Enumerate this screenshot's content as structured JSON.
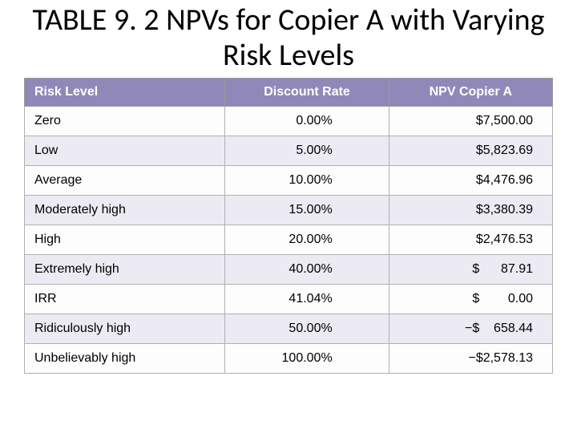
{
  "title": "TABLE 9. 2  NPVs for Copier A with Varying Risk Levels",
  "table": {
    "type": "table",
    "header_bg": "#9088b8",
    "header_fg": "#ffffff",
    "row_bg_odd": "#fdfdfe",
    "row_bg_even": "#eceaf3",
    "border_color": "#9a9a9a",
    "columns": [
      "Risk Level",
      "Discount Rate",
      "NPV Copier A"
    ],
    "col_widths_pct": [
      38,
      31,
      31
    ],
    "col_align": [
      "left",
      "right",
      "right"
    ],
    "header_align": [
      "left",
      "center",
      "center"
    ],
    "font_family": "Arial",
    "cell_fontsize": 16,
    "header_fontsize": 16,
    "rows": [
      {
        "risk": "Zero",
        "rate": "0.00%",
        "npv": "$7,500.00"
      },
      {
        "risk": "Low",
        "rate": "5.00%",
        "npv": "$5,823.69"
      },
      {
        "risk": "Average",
        "rate": "10.00%",
        "npv": "$4,476.96"
      },
      {
        "risk": "Moderately high",
        "rate": "15.00%",
        "npv": "$3,380.39"
      },
      {
        "risk": "High",
        "rate": "20.00%",
        "npv": "$2,476.53"
      },
      {
        "risk": "Extremely high",
        "rate": "40.00%",
        "npv": "$      87.91"
      },
      {
        "risk": "IRR",
        "rate": "41.04%",
        "npv": "$        0.00"
      },
      {
        "risk": "Ridiculously high",
        "rate": "50.00%",
        "npv": "−$    658.44"
      },
      {
        "risk": "Unbelievably high",
        "rate": "100.00%",
        "npv": "−$2,578.13"
      }
    ]
  }
}
